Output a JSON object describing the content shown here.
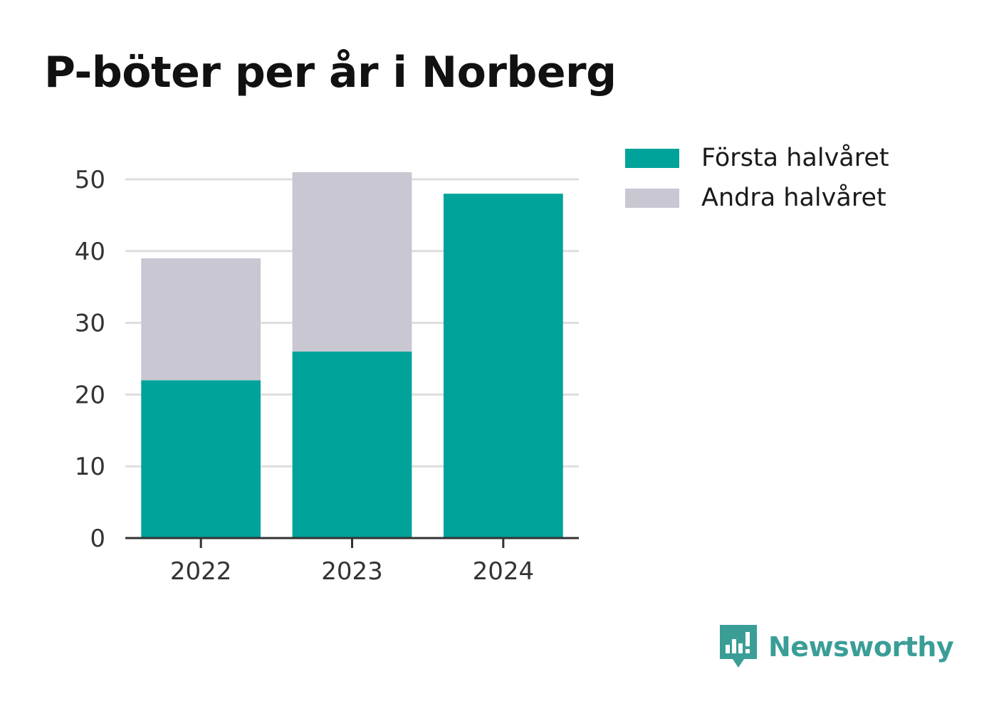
{
  "title": "P-böter per år i Norberg",
  "chart_data": {
    "type": "bar",
    "stacked": true,
    "title": "P-böter per år i Norberg",
    "categories": [
      "2022",
      "2023",
      "2024"
    ],
    "series": [
      {
        "name": "Första halvåret",
        "values": [
          22,
          26,
          48
        ],
        "color": "#00a39a"
      },
      {
        "name": "Andra halvåret",
        "values": [
          17,
          25,
          0
        ],
        "color": "#c8c7d2"
      }
    ],
    "ylim": [
      0,
      50
    ],
    "yticks": [
      0,
      10,
      20,
      30,
      40,
      50
    ],
    "grid": true,
    "legend": "top-right"
  },
  "brand": {
    "name": "Newsworthy",
    "icon": "newsworthy-logo-icon",
    "color": "#3a9e97"
  }
}
